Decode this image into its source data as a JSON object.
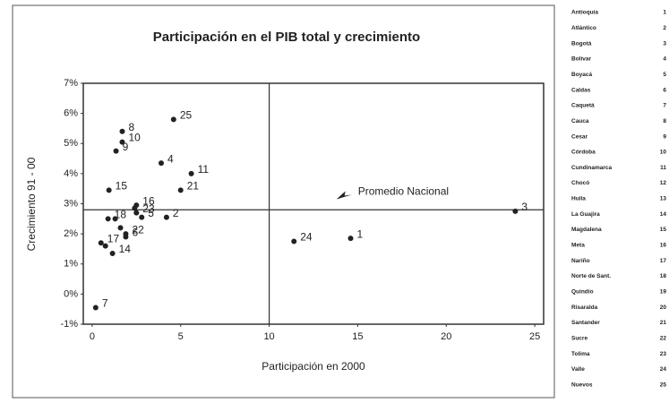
{
  "chart_data": {
    "type": "scatter",
    "title": "Participación en el PIB total y crecimiento",
    "x_label": "Participación en 2000",
    "y_label": "Crecimiento 91 - 00",
    "xlim": [
      -0.5,
      25.5
    ],
    "ylim": [
      -1,
      7
    ],
    "xticks": [
      0,
      5,
      10,
      15,
      20,
      25
    ],
    "yticks": [
      {
        "value": -1,
        "label": "-1%"
      },
      {
        "value": 0,
        "label": "0%"
      },
      {
        "value": 1,
        "label": "1%"
      },
      {
        "value": 2,
        "label": "2%"
      },
      {
        "value": 3,
        "label": "3%"
      },
      {
        "value": 4,
        "label": "4%"
      },
      {
        "value": 5,
        "label": "5%"
      },
      {
        "value": 6,
        "label": "6%"
      },
      {
        "value": 7,
        "label": "7%"
      }
    ],
    "color": "#222222",
    "x": [
      14.6,
      4.2,
      23.9,
      3.9,
      2.8,
      1.9,
      0.2,
      1.7,
      1.35,
      1.7,
      5.6,
      1.3,
      2.4,
      1.15,
      0.95,
      2.5,
      0.5,
      0.9,
      1.6,
      0.75,
      5.0,
      1.9,
      2.5,
      11.4,
      4.6
    ],
    "values": [
      1.85,
      2.55,
      2.75,
      4.35,
      2.55,
      1.9,
      -0.45,
      5.4,
      4.75,
      5.05,
      4.0,
      2.5,
      2.85,
      1.35,
      3.45,
      2.95,
      1.7,
      2.5,
      2.2,
      1.6,
      3.45,
      2.0,
      2.7,
      1.75,
      5.8
    ],
    "labels": [
      "1",
      "2",
      "3",
      "4",
      "5",
      "6",
      "7",
      "8",
      "9",
      "10",
      "11",
      null,
      null,
      "14",
      "15",
      "16",
      "17",
      "18",
      null,
      null,
      "21",
      "22",
      "23",
      "24",
      "25"
    ],
    "reference": {
      "x": 10,
      "y": 2.8
    },
    "annotation": {
      "text": "Promedio Nacional",
      "x": 13.8,
      "y": 3.15
    },
    "legend_table": [
      {
        "name": "Antioquia",
        "number": "1"
      },
      {
        "name": "Atlántico",
        "number": "2"
      },
      {
        "name": "Bogotá",
        "number": "3"
      },
      {
        "name": "Bolívar",
        "number": "4"
      },
      {
        "name": "Boyacá",
        "number": "5"
      },
      {
        "name": "Caldas",
        "number": "6"
      },
      {
        "name": "Caquetá",
        "number": "7"
      },
      {
        "name": "Cauca",
        "number": "8"
      },
      {
        "name": "Cesar",
        "number": "9"
      },
      {
        "name": "Córdoba",
        "number": "10"
      },
      {
        "name": "Cundinamarca",
        "number": "11"
      },
      {
        "name": "Chocó",
        "number": "12"
      },
      {
        "name": "Huila",
        "number": "13"
      },
      {
        "name": "La Guajira",
        "number": "14"
      },
      {
        "name": "Magdalena",
        "number": "15"
      },
      {
        "name": "Meta",
        "number": "16"
      },
      {
        "name": "Nariño",
        "number": "17"
      },
      {
        "name": "Norte de Sant.",
        "number": "18"
      },
      {
        "name": "Quindío",
        "number": "19"
      },
      {
        "name": "Risaralda",
        "number": "20"
      },
      {
        "name": "Santander",
        "number": "21"
      },
      {
        "name": "Sucre",
        "number": "22"
      },
      {
        "name": "Tolima",
        "number": "23"
      },
      {
        "name": "Valle",
        "number": "24"
      },
      {
        "name": "Nuevos",
        "number": "25"
      }
    ]
  }
}
